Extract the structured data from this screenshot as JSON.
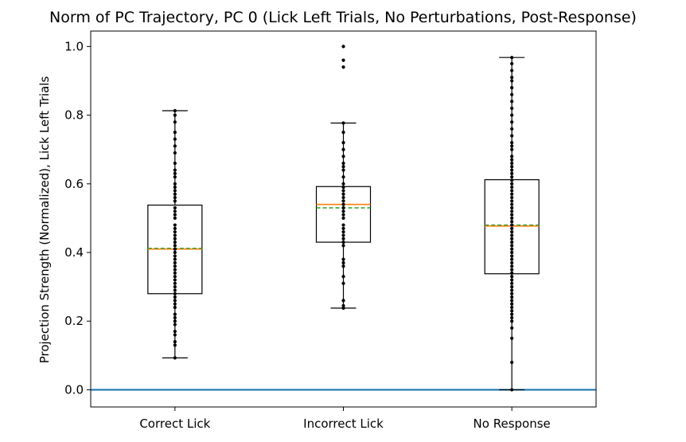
{
  "chart_data": {
    "type": "box",
    "title": "Norm of PC Trajectory, PC 0  (Lick Left Trials, No Perturbations, Post-Response)",
    "xlabel": "",
    "ylabel": "Projection Strength (Normalized), Lick Left Trials",
    "ylim": [
      -0.05,
      1.045
    ],
    "yticks": [
      0.0,
      0.2,
      0.4,
      0.6,
      0.8,
      1.0
    ],
    "ytick_labels": [
      "0.0",
      "0.2",
      "0.4",
      "0.6",
      "0.8",
      "1.0"
    ],
    "categories": [
      "Correct Lick",
      "Incorrect Lick",
      "No Response"
    ],
    "boxes": [
      {
        "category": "Correct Lick",
        "whisker_low": 0.093,
        "q1": 0.28,
        "median": 0.41,
        "mean": 0.412,
        "q3": 0.538,
        "whisker_high": 0.813,
        "points": [
          0.093,
          0.13,
          0.14,
          0.16,
          0.17,
          0.19,
          0.2,
          0.21,
          0.22,
          0.24,
          0.25,
          0.26,
          0.27,
          0.28,
          0.29,
          0.3,
          0.31,
          0.32,
          0.33,
          0.34,
          0.35,
          0.36,
          0.37,
          0.38,
          0.39,
          0.4,
          0.41,
          0.42,
          0.43,
          0.44,
          0.45,
          0.46,
          0.47,
          0.48,
          0.5,
          0.51,
          0.52,
          0.53,
          0.55,
          0.56,
          0.57,
          0.58,
          0.59,
          0.6,
          0.62,
          0.63,
          0.64,
          0.66,
          0.69,
          0.71,
          0.73,
          0.75,
          0.78,
          0.8,
          0.813
        ]
      },
      {
        "category": "Incorrect Lick",
        "whisker_low": 0.238,
        "q1": 0.43,
        "median": 0.54,
        "mean": 0.53,
        "q3": 0.592,
        "whisker_high": 0.777,
        "points": [
          0.238,
          0.245,
          0.26,
          0.31,
          0.33,
          0.36,
          0.37,
          0.38,
          0.42,
          0.43,
          0.44,
          0.45,
          0.46,
          0.47,
          0.48,
          0.5,
          0.51,
          0.52,
          0.53,
          0.54,
          0.55,
          0.56,
          0.57,
          0.58,
          0.59,
          0.6,
          0.62,
          0.64,
          0.65,
          0.66,
          0.68,
          0.7,
          0.72,
          0.75,
          0.777,
          0.94,
          0.96,
          1.0
        ]
      },
      {
        "category": "No Response",
        "whisker_low": 0.0,
        "q1": 0.338,
        "median": 0.477,
        "mean": 0.48,
        "q3": 0.612,
        "whisker_high": 0.968,
        "points": [
          0.0,
          0.08,
          0.15,
          0.18,
          0.2,
          0.21,
          0.22,
          0.23,
          0.24,
          0.25,
          0.26,
          0.27,
          0.28,
          0.29,
          0.3,
          0.31,
          0.32,
          0.33,
          0.34,
          0.35,
          0.36,
          0.37,
          0.38,
          0.39,
          0.4,
          0.41,
          0.42,
          0.43,
          0.44,
          0.45,
          0.46,
          0.47,
          0.48,
          0.49,
          0.5,
          0.51,
          0.52,
          0.53,
          0.54,
          0.55,
          0.56,
          0.57,
          0.58,
          0.59,
          0.6,
          0.61,
          0.62,
          0.63,
          0.64,
          0.65,
          0.66,
          0.67,
          0.68,
          0.7,
          0.71,
          0.72,
          0.74,
          0.76,
          0.78,
          0.8,
          0.82,
          0.84,
          0.86,
          0.88,
          0.9,
          0.91,
          0.93,
          0.95,
          0.968
        ]
      }
    ],
    "reference_line_y": 0.0,
    "colors": {
      "median": "#ff7f0e",
      "mean": "#2ca02c",
      "reference_line": "#1f77b4",
      "box": "#000000",
      "points": "#000000"
    },
    "grid": false
  }
}
